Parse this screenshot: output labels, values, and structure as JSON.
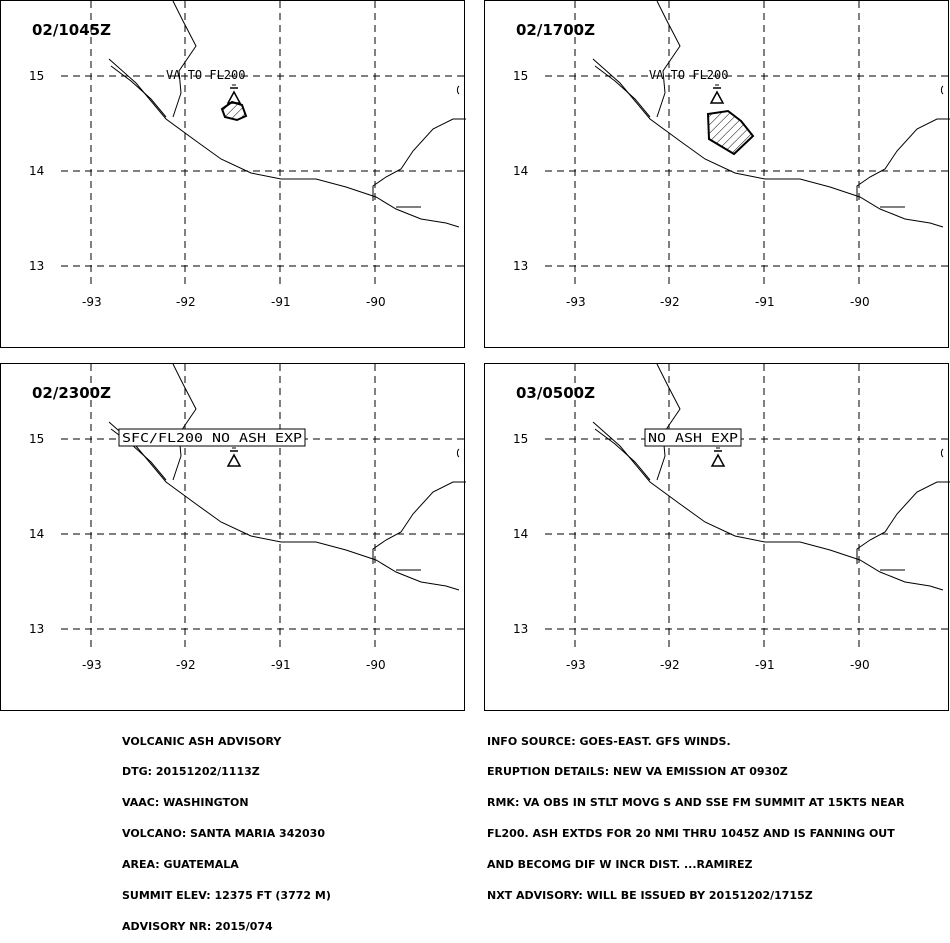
{
  "panels": [
    {
      "time": "02/1045Z",
      "label": "VA TO FL200",
      "boxed": false,
      "ash": "small"
    },
    {
      "time": "02/1700Z",
      "label": "VA TO FL200",
      "boxed": false,
      "ash": "large"
    },
    {
      "time": "02/2300Z",
      "label": "SFC/FL200 NO ASH EXP",
      "boxed": true,
      "ash": "none"
    },
    {
      "time": "03/0500Z",
      "label": "NO ASH EXP",
      "boxed": true,
      "ash": "none"
    }
  ],
  "axes": {
    "lat_ticks": [
      "15",
      "14",
      "13"
    ],
    "lon_ticks": [
      "-93",
      "-92",
      "-91",
      "-90"
    ]
  },
  "advisory_left": [
    "VOLCANIC ASH ADVISORY",
    "DTG: 20151202/1113Z",
    "VAAC: WASHINGTON",
    "VOLCANO: SANTA MARIA 342030",
    "AREA: GUATEMALA",
    "SUMMIT ELEV: 12375 FT (3772 M)",
    "ADVISORY NR: 2015/074"
  ],
  "advisory_right": [
    "INFO SOURCE: GOES-EAST. GFS WINDS.",
    "ERUPTION DETAILS: NEW VA EMISSION AT 0930Z",
    "RMK: VA OBS IN STLT MOVG S AND SSE FM SUMMIT AT 15KTS NEAR",
    "FL200. ASH EXTDS FOR 20 NMI THRU 1045Z AND IS FANNING OUT",
    "AND BECOMG DIF W INCR DIST. ...RAMIREZ",
    "NXT ADVISORY: WILL BE ISSUED BY 20151202/1715Z"
  ],
  "colors": {
    "line": "#000000",
    "background": "#ffffff"
  },
  "icons": {
    "volcano": "volcano-icon"
  }
}
